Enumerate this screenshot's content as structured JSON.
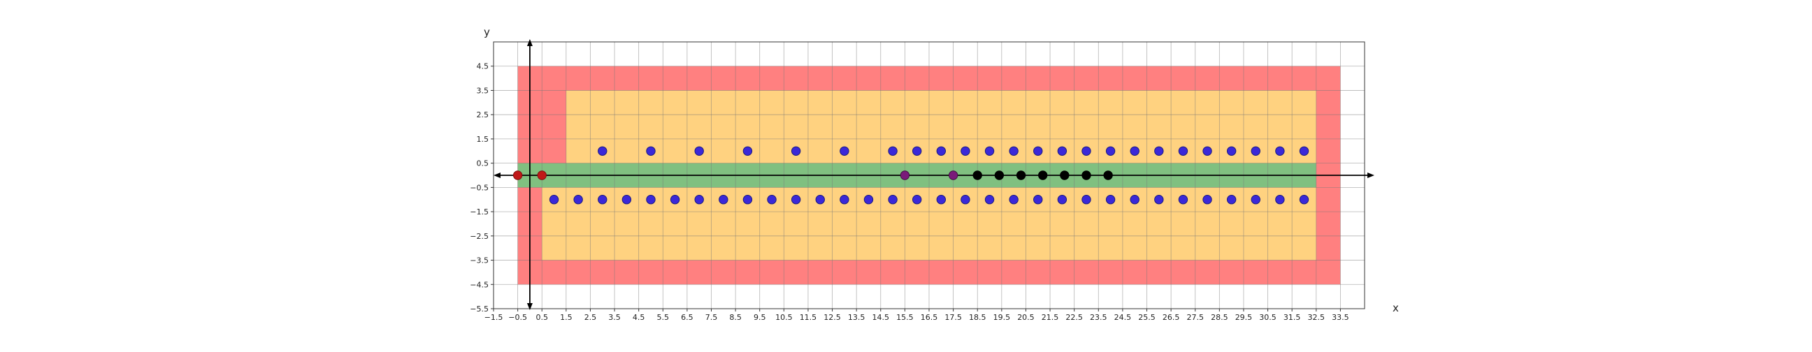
{
  "chart_data": {
    "type": "scatter",
    "xlabel": "x",
    "ylabel": "y",
    "xlim": [
      -1.5,
      34.5
    ],
    "ylim": [
      -5.5,
      5.5
    ],
    "x_ticks": [
      -1.5,
      -0.5,
      0.5,
      1.5,
      2.5,
      3.5,
      4.5,
      5.5,
      6.5,
      7.5,
      8.5,
      9.5,
      10.5,
      11.5,
      12.5,
      13.5,
      14.5,
      15.5,
      16.5,
      17.5,
      18.5,
      19.5,
      20.5,
      21.5,
      22.5,
      23.5,
      24.5,
      25.5,
      26.5,
      27.5,
      28.5,
      29.5,
      30.5,
      31.5,
      32.5,
      33.5
    ],
    "x_tick_labels": [
      "−1.5",
      "−0.5",
      "0.5",
      "1.5",
      "2.5",
      "3.5",
      "4.5",
      "5.5",
      "6.5",
      "7.5",
      "8.5",
      "9.5",
      "10.5",
      "11.5",
      "12.5",
      "13.5",
      "14.5",
      "15.5",
      "16.5",
      "17.5",
      "18.5",
      "19.5",
      "20.5",
      "21.5",
      "22.5",
      "23.5",
      "24.5",
      "25.5",
      "26.5",
      "27.5",
      "28.5",
      "29.5",
      "30.5",
      "31.5",
      "32.5",
      "33.5"
    ],
    "y_ticks": [
      -5.5,
      -4.5,
      -3.5,
      -2.5,
      -1.5,
      -0.5,
      0.5,
      1.5,
      2.5,
      3.5,
      4.5
    ],
    "y_tick_labels": [
      "−5.5",
      "−4.5",
      "−3.5",
      "−2.5",
      "−1.5",
      "−0.5",
      "0.5",
      "1.5",
      "2.5",
      "3.5",
      "4.5"
    ],
    "grid": true,
    "regions": [
      {
        "color": "#ff8080",
        "rects": [
          [
            -0.5,
            -4.5,
            33.5,
            4.5
          ]
        ]
      },
      {
        "color": "#ffd280",
        "rects": [
          [
            1.5,
            0.5,
            32.5,
            3.5
          ],
          [
            0.5,
            -3.5,
            32.5,
            -0.5
          ]
        ]
      },
      {
        "color": "#80c080",
        "rects": [
          [
            -0.5,
            -0.5,
            32.5,
            0.5
          ]
        ]
      }
    ],
    "point_groups": [
      {
        "color": "#3b28d8",
        "edge": "#1a1a80",
        "x": [
          3,
          5,
          7,
          9,
          11,
          13,
          15,
          16,
          17,
          18,
          19,
          20,
          21,
          22,
          23,
          24,
          25,
          26,
          27,
          28,
          29,
          30,
          31,
          32
        ],
        "y": [
          1,
          1,
          1,
          1,
          1,
          1,
          1,
          1,
          1,
          1,
          1,
          1,
          1,
          1,
          1,
          1,
          1,
          1,
          1,
          1,
          1,
          1,
          1,
          1
        ]
      },
      {
        "color": "#3b28d8",
        "edge": "#1a1a80",
        "x": [
          1,
          2,
          3,
          4,
          5,
          6,
          7,
          8,
          9,
          10,
          11,
          12,
          13,
          14,
          15,
          16,
          17,
          18,
          19,
          20,
          21,
          22,
          23,
          24,
          25,
          26,
          27,
          28,
          29,
          30,
          31,
          32
        ],
        "y": [
          -1,
          -1,
          -1,
          -1,
          -1,
          -1,
          -1,
          -1,
          -1,
          -1,
          -1,
          -1,
          -1,
          -1,
          -1,
          -1,
          -1,
          -1,
          -1,
          -1,
          -1,
          -1,
          -1,
          -1,
          -1,
          -1,
          -1,
          -1,
          -1,
          -1,
          -1,
          -1
        ]
      },
      {
        "color": "#c01818",
        "edge": "#801010",
        "x": [
          -0.5,
          0.5
        ],
        "y": [
          0,
          0
        ]
      },
      {
        "color": "#7a1a7a",
        "edge": "#401040",
        "x": [
          15.5,
          17.5
        ],
        "y": [
          0,
          0
        ]
      },
      {
        "color": "#000000",
        "edge": "#000000",
        "x": [
          18.5,
          19.4,
          20.3,
          21.2,
          22.1,
          23.0,
          23.9
        ],
        "y": [
          0,
          0,
          0,
          0,
          0,
          0,
          0
        ]
      }
    ]
  }
}
